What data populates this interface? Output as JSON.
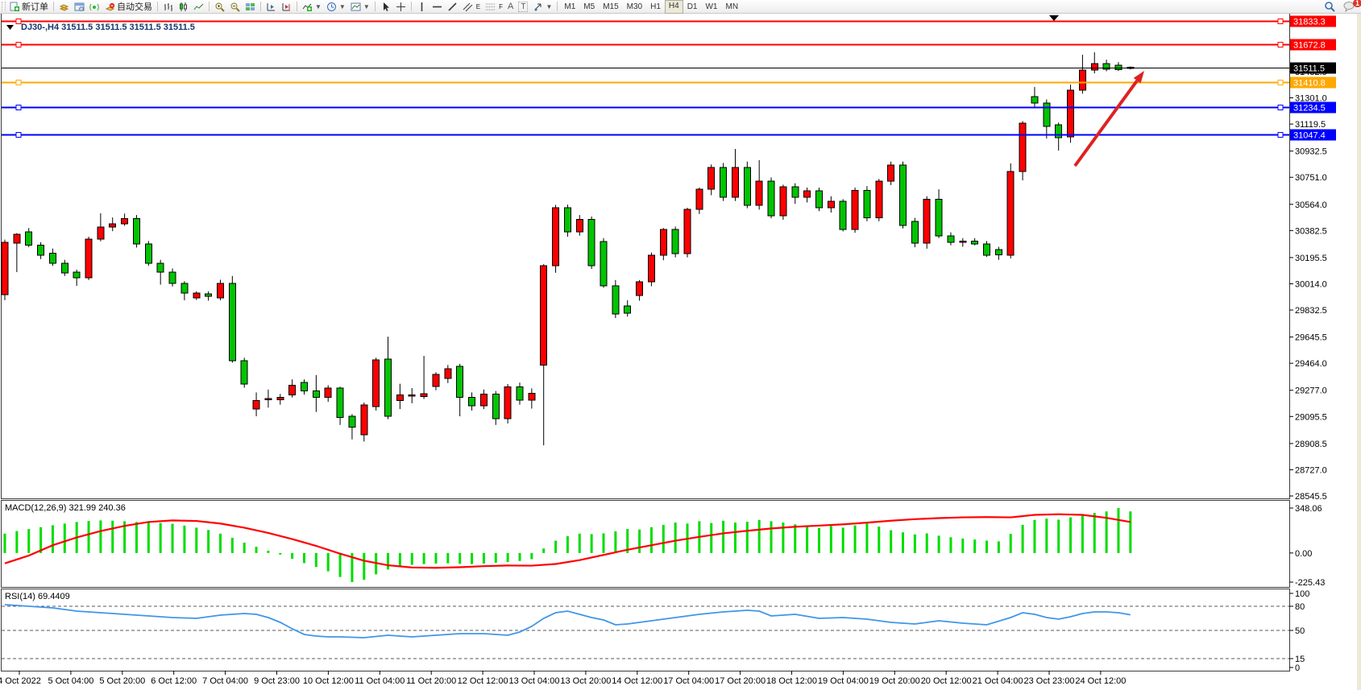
{
  "toolbar": {
    "new_order": "新订单",
    "autotrade": "自动交易",
    "timeframes": [
      "M1",
      "M5",
      "M15",
      "M30",
      "H1",
      "H4",
      "D1",
      "W1",
      "MN"
    ],
    "active_timeframe": "H4",
    "notification_count": "1",
    "text_tool": "A",
    "label_tool": "T",
    "channel_tag": "E",
    "fibo_tag": "F"
  },
  "chart_data": {
    "type": "candlestick-with-indicators",
    "title_text": "DJ30-,H4  31511.5 31511.5 31511.5 31511.5",
    "symbol": "DJ30-",
    "timeframe": "H4",
    "colors": {
      "up": "#ff0000",
      "down": "#00c400",
      "outline": "#000000",
      "macd_hist": "#00dd00",
      "macd_signal": "#ff0000",
      "rsi_line": "#3f96e8",
      "arrow": "#dd2222",
      "title": "#14366e",
      "level_red": "#ff0000",
      "level_orange": "#ffa800",
      "level_blue": "#0000ff",
      "price_line": "#000000"
    },
    "main": {
      "ylim": [
        28545.5,
        31833.3
      ],
      "current_price": 31511.5,
      "y_ticks": [
        "31482.5",
        "31301.0",
        "31119.5",
        "30932.5",
        "30751.0",
        "30564.0",
        "30382.5",
        "30195.5",
        "30014.0",
        "29832.5",
        "29645.5",
        "29464.0",
        "29277.0",
        "29095.5",
        "28908.5",
        "28727.0",
        "28545.5"
      ],
      "hlines": [
        {
          "price": 31833.3,
          "label": "31833.3",
          "color": "#ff0000",
          "width": 2
        },
        {
          "price": 31672.8,
          "label": "31672.8",
          "color": "#ff0000",
          "width": 2
        },
        {
          "price": 31511.5,
          "label": "31511.5",
          "color": "#000000",
          "width": 1
        },
        {
          "price": 31410.8,
          "label": "31410.8",
          "color": "#ffa800",
          "width": 2
        },
        {
          "price": 31234.5,
          "label": "31234.5",
          "color": "#0000ff",
          "width": 2
        },
        {
          "price": 31047.4,
          "label": "31047.4",
          "color": "#0000ff",
          "width": 2
        }
      ],
      "ohlc": [
        [
          29940,
          30320,
          29900,
          30300
        ],
        [
          30296,
          30365,
          30095,
          30357
        ],
        [
          30374,
          30400,
          30268,
          30280
        ],
        [
          30280,
          30302,
          30185,
          30212
        ],
        [
          30225,
          30258,
          30138,
          30156
        ],
        [
          30156,
          30180,
          30068,
          30090
        ],
        [
          30095,
          30112,
          30000,
          30056
        ],
        [
          30056,
          30340,
          30040,
          30323
        ],
        [
          30323,
          30502,
          30308,
          30407
        ],
        [
          30407,
          30473,
          30378,
          30430
        ],
        [
          30430,
          30500,
          30415,
          30465
        ],
        [
          30465,
          30490,
          30265,
          30290
        ],
        [
          30290,
          30310,
          30138,
          30156
        ],
        [
          30156,
          30180,
          30008,
          30095
        ],
        [
          30095,
          30120,
          29995,
          30017
        ],
        [
          30017,
          30032,
          29900,
          29950
        ],
        [
          29917,
          29962,
          29902,
          29950
        ],
        [
          29945,
          29962,
          29897,
          29928
        ],
        [
          29917,
          30042,
          29900,
          30017
        ],
        [
          30017,
          30068,
          29468,
          29482
        ],
        [
          29482,
          29502,
          29295,
          29320
        ],
        [
          29146,
          29262,
          29097,
          29207
        ],
        [
          29218,
          29282,
          29157,
          29220
        ],
        [
          29212,
          29252,
          29177,
          29228
        ],
        [
          29246,
          29352,
          29227,
          29313
        ],
        [
          29330,
          29352,
          29247,
          29274
        ],
        [
          29274,
          29382,
          29127,
          29229
        ],
        [
          29229,
          29312,
          29197,
          29291
        ],
        [
          29291,
          29302,
          29037,
          29090
        ],
        [
          29096,
          29112,
          28937,
          29023
        ],
        [
          28968,
          29192,
          28922,
          29174
        ],
        [
          29163,
          29502,
          29137,
          29487
        ],
        [
          29493,
          29648,
          29077,
          29096
        ],
        [
          29207,
          29322,
          29147,
          29246
        ],
        [
          29240,
          29292,
          29187,
          29246
        ],
        [
          29235,
          29515,
          29217,
          29252
        ],
        [
          29302,
          29402,
          29277,
          29386
        ],
        [
          29358,
          29452,
          29327,
          29425
        ],
        [
          29442,
          29460,
          29097,
          29229
        ],
        [
          29229,
          29262,
          29137,
          29170
        ],
        [
          29170,
          29282,
          29147,
          29250
        ],
        [
          29250,
          29272,
          29037,
          29080
        ],
        [
          29080,
          29320,
          29047,
          29300
        ],
        [
          29300,
          29330,
          29177,
          29210
        ],
        [
          29210,
          29290,
          29150,
          29255
        ],
        [
          29450,
          30150,
          28896,
          30139
        ],
        [
          30139,
          30560,
          30090,
          30540
        ],
        [
          30540,
          30562,
          30340,
          30373
        ],
        [
          30373,
          30490,
          30347,
          30460
        ],
        [
          30460,
          30480,
          30117,
          30140
        ],
        [
          30306,
          30330,
          29987,
          30000
        ],
        [
          30000,
          30040,
          29777,
          29805
        ],
        [
          29860,
          29900,
          29787,
          29810
        ],
        [
          29933,
          30040,
          29897,
          30028
        ],
        [
          30028,
          30230,
          29997,
          30212
        ],
        [
          30212,
          30400,
          30177,
          30390
        ],
        [
          30390,
          30410,
          30197,
          30223
        ],
        [
          30223,
          30540,
          30197,
          30529
        ],
        [
          30529,
          30680,
          30497,
          30668
        ],
        [
          30668,
          30840,
          30627,
          30820
        ],
        [
          30820,
          30850,
          30587,
          30612
        ],
        [
          30612,
          30947,
          30587,
          30818
        ],
        [
          30818,
          30860,
          30537,
          30557
        ],
        [
          30557,
          30870,
          30527,
          30724
        ],
        [
          30724,
          30750,
          30467,
          30484
        ],
        [
          30484,
          30700,
          30457,
          30685
        ],
        [
          30685,
          30710,
          30567,
          30612
        ],
        [
          30612,
          30680,
          30577,
          30657
        ],
        [
          30657,
          30680,
          30517,
          30540
        ],
        [
          30540,
          30620,
          30507,
          30585
        ],
        [
          30585,
          30600,
          30377,
          30390
        ],
        [
          30390,
          30680,
          30367,
          30660
        ],
        [
          30660,
          30690,
          30447,
          30470
        ],
        [
          30470,
          30740,
          30447,
          30724
        ],
        [
          30724,
          30860,
          30697,
          30835
        ],
        [
          30835,
          30860,
          30397,
          30418
        ],
        [
          30446,
          30470,
          30267,
          30295
        ],
        [
          30295,
          30620,
          30257,
          30600
        ],
        [
          30600,
          30668,
          30330,
          30345
        ],
        [
          30345,
          30370,
          30280,
          30300
        ],
        [
          30300,
          30330,
          30270,
          30310
        ],
        [
          30310,
          30330,
          30280,
          30290
        ],
        [
          30290,
          30310,
          30200,
          30211
        ],
        [
          30250,
          30270,
          30180,
          30215
        ],
        [
          30211,
          30847,
          30190,
          30791
        ],
        [
          30791,
          31140,
          30730,
          31125
        ],
        [
          31309,
          31376,
          31240,
          31265
        ],
        [
          31265,
          31290,
          31020,
          31103
        ],
        [
          31114,
          31130,
          30936,
          31025
        ],
        [
          31031,
          31393,
          30990,
          31354
        ],
        [
          31354,
          31599,
          31330,
          31493
        ],
        [
          31493,
          31616,
          31470,
          31538
        ],
        [
          31538,
          31565,
          31485,
          31500
        ],
        [
          31527,
          31548,
          31488,
          31495
        ],
        [
          31505,
          31518,
          31498,
          31511.5
        ]
      ]
    },
    "x_labels": [
      "4 Oct 2022",
      "5 Oct 04:00",
      "5 Oct 20:00",
      "6 Oct 12:00",
      "7 Oct 04:00",
      "9 Oct 23:00",
      "10 Oct 12:00",
      "11 Oct 04:00",
      "11 Oct 20:00",
      "12 Oct 12:00",
      "13 Oct 04:00",
      "13 Oct 20:00",
      "14 Oct 12:00",
      "17 Oct 04:00",
      "17 Oct 20:00",
      "18 Oct 12:00",
      "19 Oct 04:00",
      "19 Oct 20:00",
      "20 Oct 12:00",
      "21 Oct 04:00",
      "23 Oct 23:00",
      "24 Oct 12:00"
    ],
    "macd": {
      "label": "MACD(12,26,9)",
      "values_text": "321.99 240.36",
      "ylim": [
        -225.43,
        348.06
      ],
      "y_ticks": [
        "348.06",
        "0.00",
        "-225.43"
      ],
      "histogram": [
        150,
        170,
        185,
        200,
        215,
        228,
        240,
        248,
        252,
        250,
        246,
        240,
        236,
        232,
        226,
        212,
        196,
        178,
        150,
        118,
        80,
        48,
        18,
        -12,
        -45,
        -78,
        -108,
        -142,
        -186,
        -225,
        -208,
        -165,
        -128,
        -102,
        -92,
        -86,
        -82,
        -80,
        -84,
        -86,
        -82,
        -76,
        -70,
        -62,
        -48,
        35,
        95,
        130,
        150,
        146,
        152,
        168,
        186,
        182,
        200,
        218,
        236,
        228,
        246,
        232,
        250,
        236,
        242,
        256,
        246,
        236,
        222,
        210,
        194,
        210,
        196,
        214,
        230,
        204,
        176,
        160,
        144,
        152,
        134,
        122,
        112,
        104,
        96,
        90,
        148,
        218,
        256,
        266,
        258,
        276,
        296,
        310,
        322,
        348,
        322
      ],
      "signal": [
        [
          0,
          -80
        ],
        [
          2,
          -20
        ],
        [
          4,
          60
        ],
        [
          6,
          120
        ],
        [
          8,
          170
        ],
        [
          10,
          210
        ],
        [
          12,
          240
        ],
        [
          14,
          252
        ],
        [
          16,
          248
        ],
        [
          18,
          228
        ],
        [
          20,
          196
        ],
        [
          22,
          155
        ],
        [
          24,
          108
        ],
        [
          26,
          55
        ],
        [
          28,
          -5
        ],
        [
          30,
          -60
        ],
        [
          32,
          -95
        ],
        [
          34,
          -112
        ],
        [
          36,
          -115
        ],
        [
          38,
          -110
        ],
        [
          40,
          -102
        ],
        [
          42,
          -97
        ],
        [
          44,
          -98
        ],
        [
          46,
          -85
        ],
        [
          48,
          -55
        ],
        [
          50,
          -15
        ],
        [
          52,
          25
        ],
        [
          54,
          60
        ],
        [
          56,
          95
        ],
        [
          58,
          125
        ],
        [
          60,
          152
        ],
        [
          62,
          172
        ],
        [
          64,
          190
        ],
        [
          66,
          203
        ],
        [
          68,
          212
        ],
        [
          70,
          222
        ],
        [
          72,
          235
        ],
        [
          74,
          250
        ],
        [
          76,
          262
        ],
        [
          78,
          270
        ],
        [
          80,
          276
        ],
        [
          82,
          278
        ],
        [
          84,
          276
        ],
        [
          86,
          295
        ],
        [
          88,
          300
        ],
        [
          90,
          295
        ],
        [
          92,
          272
        ],
        [
          94,
          240
        ]
      ]
    },
    "rsi": {
      "label": "RSI(14)",
      "value_text": "69.4409",
      "levels": [
        80,
        50,
        15
      ],
      "y_ticks": [
        100,
        80,
        50,
        15,
        0
      ],
      "points": [
        [
          0,
          82
        ],
        [
          2,
          80
        ],
        [
          4,
          78
        ],
        [
          6,
          74
        ],
        [
          8,
          72
        ],
        [
          10,
          70
        ],
        [
          12,
          68
        ],
        [
          14,
          66
        ],
        [
          16,
          65
        ],
        [
          18,
          69
        ],
        [
          20,
          71
        ],
        [
          21,
          70
        ],
        [
          22,
          66
        ],
        [
          23,
          60
        ],
        [
          24,
          52
        ],
        [
          25,
          45
        ],
        [
          26,
          43
        ],
        [
          27,
          42
        ],
        [
          28,
          42
        ],
        [
          30,
          41
        ],
        [
          32,
          44
        ],
        [
          34,
          42
        ],
        [
          36,
          44
        ],
        [
          38,
          46
        ],
        [
          40,
          46
        ],
        [
          42,
          44
        ],
        [
          43,
          48
        ],
        [
          44,
          55
        ],
        [
          45,
          65
        ],
        [
          46,
          72
        ],
        [
          47,
          74
        ],
        [
          48,
          70
        ],
        [
          49,
          66
        ],
        [
          50,
          63
        ],
        [
          51,
          57
        ],
        [
          52,
          58
        ],
        [
          54,
          62
        ],
        [
          56,
          66
        ],
        [
          58,
          70
        ],
        [
          60,
          73
        ],
        [
          62,
          75
        ],
        [
          63,
          74
        ],
        [
          64,
          68
        ],
        [
          66,
          70
        ],
        [
          68,
          65
        ],
        [
          70,
          66
        ],
        [
          72,
          64
        ],
        [
          74,
          60
        ],
        [
          76,
          58
        ],
        [
          78,
          62
        ],
        [
          80,
          59
        ],
        [
          82,
          57
        ],
        [
          84,
          66
        ],
        [
          85,
          72
        ],
        [
          86,
          70
        ],
        [
          87,
          66
        ],
        [
          88,
          64
        ],
        [
          89,
          67
        ],
        [
          90,
          71
        ],
        [
          91,
          73
        ],
        [
          92,
          73
        ],
        [
          93,
          72
        ],
        [
          94,
          69.4
        ]
      ]
    },
    "annotation_arrow": {
      "from": [
        1334,
        206
      ],
      "to": [
        1420,
        88
      ]
    }
  }
}
